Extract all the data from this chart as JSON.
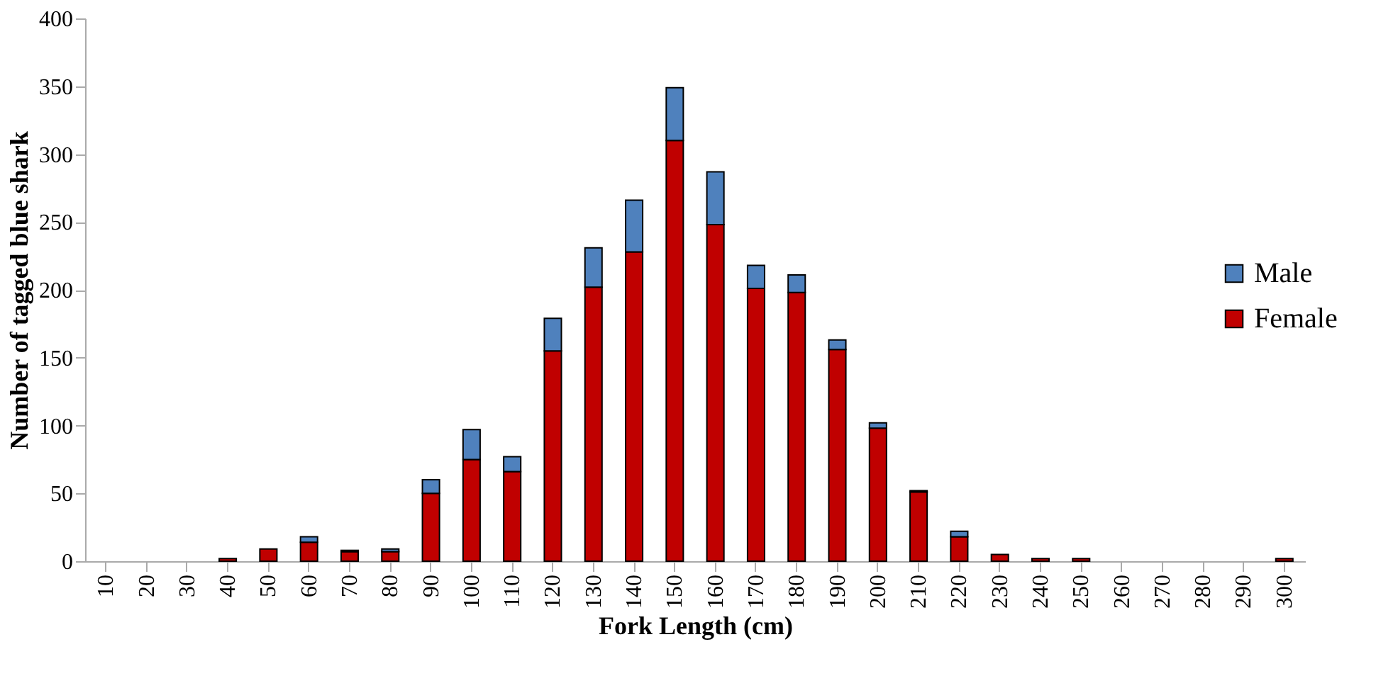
{
  "chart_data": {
    "type": "bar",
    "stacked": true,
    "xlabel": "Fork Length (cm)",
    "ylabel": "Number  of tagged blue shark",
    "categories": [
      "10",
      "20",
      "30",
      "40",
      "50",
      "60",
      "70",
      "80",
      "90",
      "100",
      "110",
      "120",
      "130",
      "140",
      "150",
      "160",
      "170",
      "180",
      "190",
      "200",
      "210",
      "220",
      "230",
      "240",
      "250",
      "260",
      "270",
      "280",
      "290",
      "300"
    ],
    "series": [
      {
        "name": "Female",
        "color": "#c00000",
        "values": [
          0,
          0,
          0,
          2,
          9,
          14,
          7,
          7,
          50,
          75,
          66,
          155,
          202,
          228,
          310,
          248,
          201,
          198,
          156,
          98,
          51,
          18,
          5,
          2,
          2,
          0,
          0,
          0,
          0,
          2
        ]
      },
      {
        "name": "Male",
        "color": "#4f81bd",
        "values": [
          0,
          0,
          0,
          0,
          0,
          4,
          1,
          2,
          10,
          22,
          11,
          24,
          29,
          38,
          39,
          39,
          17,
          13,
          7,
          4,
          1,
          4,
          0,
          0,
          0,
          0,
          0,
          0,
          0,
          0
        ]
      }
    ],
    "ylim": [
      0,
      400
    ],
    "yticks": [
      0,
      50,
      100,
      150,
      200,
      250,
      300,
      350,
      400
    ],
    "grid": false,
    "legend": "right"
  }
}
